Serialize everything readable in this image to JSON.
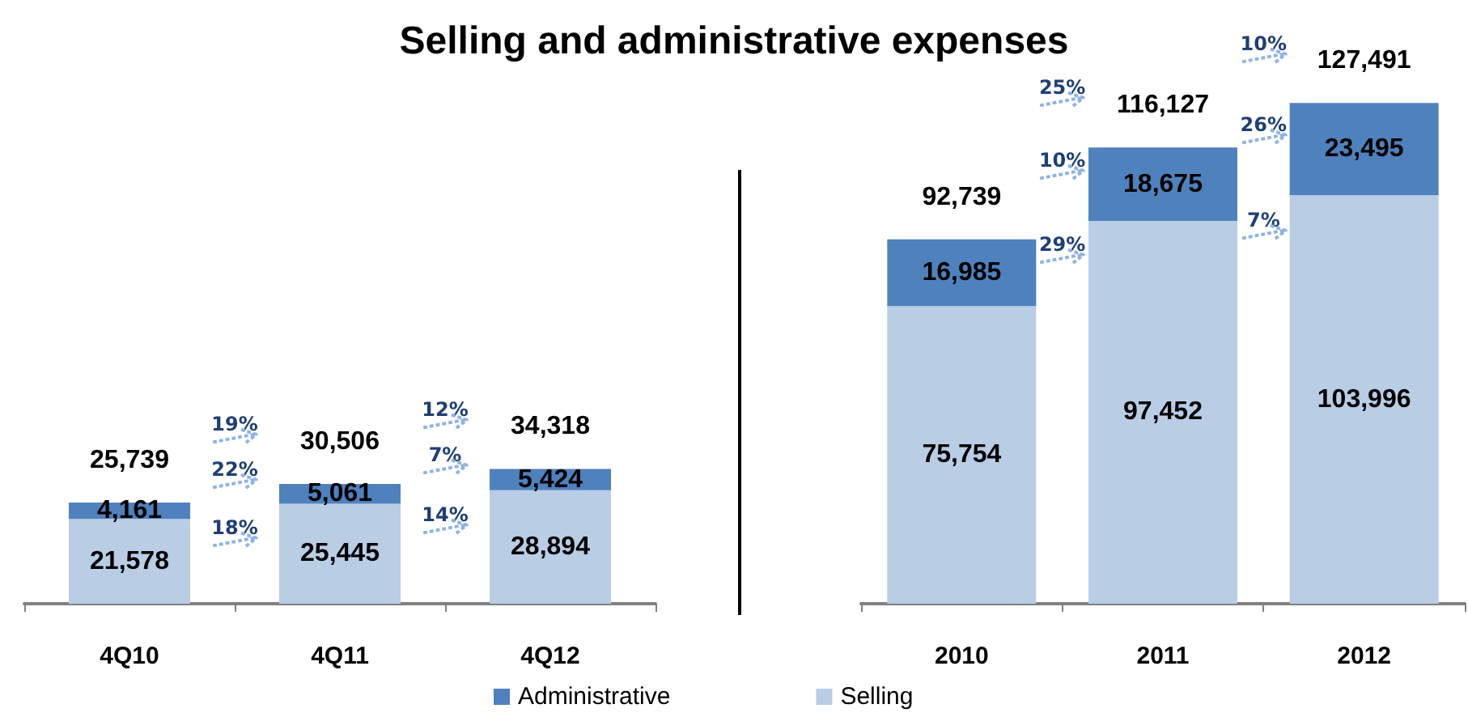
{
  "chart_data": [
    {
      "type": "bar",
      "title": "Selling and administrative expenses",
      "categories": [
        "4Q10",
        "4Q11",
        "4Q12"
      ],
      "stacked": true,
      "series": [
        {
          "color": "#b9cde5",
          "values": [
            21578,
            25445,
            28894
          ],
          "value_labels": [
            "21,578",
            "25,445",
            "28,894"
          ]
        },
        {
          "color": "#4f81bd",
          "values": [
            4161,
            5061,
            5424
          ],
          "value_labels": [
            "4,161",
            "5,061",
            "5,424"
          ]
        }
      ],
      "totals": [
        "25,739",
        "30,506",
        "34,318"
      ],
      "annotations": [
        "19%",
        "22%",
        "18%",
        "12%",
        "7%",
        "14%"
      ]
    },
    {
      "type": "bar",
      "categories": [
        "2010",
        "2011",
        "2012"
      ],
      "stacked": true,
      "series": [
        {
          "name": "Selling",
          "color": "#b9cde5",
          "values": [
            75754,
            97452,
            103996
          ],
          "value_labels": [
            "75,754",
            "97,452",
            "103,996"
          ]
        },
        {
          "name": "Administrative",
          "color": "#4f81bd",
          "values": [
            16985,
            18675,
            23495
          ],
          "value_labels": [
            "16,985",
            "18,675",
            "23,495"
          ]
        }
      ],
      "totals": [
        "92,739",
        "116,127",
        "127,491"
      ],
      "annotations": [
        "25%",
        "10%",
        "29%",
        "10%",
        "26%",
        "7%"
      ],
      "legend": "bottom"
    }
  ]
}
